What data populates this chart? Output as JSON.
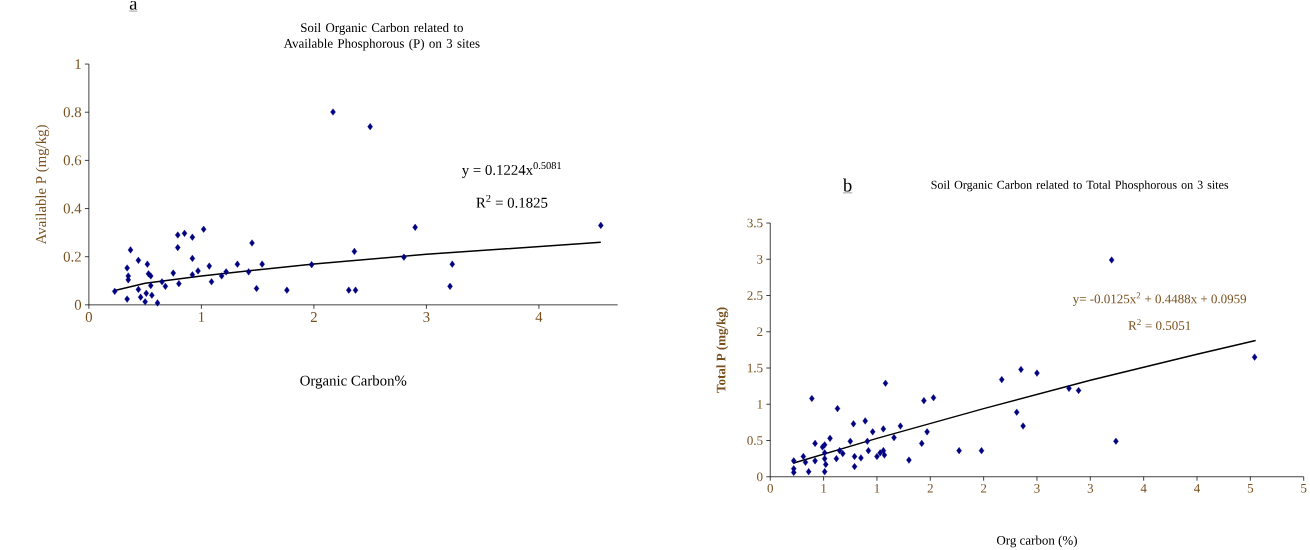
{
  "chart_data": [
    {
      "type": "scatter",
      "title": "Soil Organic Carbon related to Available Phosphorous (P) on 3 sites",
      "xlabel": "Organic Carbon%",
      "ylabel": "Available P (mg/kg)",
      "annotations": [
        "a",
        "y = 0.1224x$^{0.5081}$",
        "R$^{2}$ = 0.1825"
      ],
      "xlim": [
        0,
        4.7
      ],
      "ylim": [
        0,
        1
      ],
      "xticks": [
        0,
        1,
        2,
        3,
        4
      ],
      "yticks": [
        0,
        0.2,
        0.4,
        0.6,
        0.8,
        1
      ],
      "grid": false,
      "marker": "diamond",
      "series": [
        {
          "color": "#000080",
          "x": [
            0.23,
            0.34,
            0.34,
            0.35,
            0.35,
            0.37,
            0.44,
            0.44,
            0.46,
            0.5,
            0.51,
            0.52,
            0.53,
            0.55,
            0.55,
            0.56,
            0.61,
            0.65,
            0.68,
            0.75,
            0.79,
            0.79,
            0.8,
            0.85,
            0.92,
            0.92,
            0.92,
            0.97,
            1.02,
            1.07,
            1.09,
            1.18,
            1.22,
            1.32,
            1.42,
            1.45,
            1.49,
            1.54,
            1.76,
            1.98,
            2.17,
            2.31,
            2.36,
            2.37,
            2.5,
            2.8,
            2.9,
            3.21,
            3.23,
            4.55
          ],
          "values": [
            0.056,
            0.024,
            0.153,
            0.12,
            0.104,
            0.228,
            0.185,
            0.064,
            0.032,
            0.013,
            0.048,
            0.169,
            0.129,
            0.12,
            0.08,
            0.04,
            0.008,
            0.096,
            0.077,
            0.132,
            0.29,
            0.238,
            0.088,
            0.297,
            0.281,
            0.193,
            0.125,
            0.141,
            0.314,
            0.161,
            0.096,
            0.12,
            0.137,
            0.169,
            0.137,
            0.257,
            0.068,
            0.169,
            0.061,
            0.167,
            0.801,
            0.061,
            0.222,
            0.061,
            0.74,
            0.198,
            0.322,
            0.077,
            0.169,
            0.33
          ]
        },
        {
          "type": "line",
          "color": "#000000",
          "marker": "none",
          "x": [
            0.23,
            0.5,
            1,
            2,
            3,
            4.55
          ],
          "values": [
            0.06,
            0.09,
            0.12,
            0.17,
            0.21,
            0.26
          ]
        }
      ]
    },
    {
      "type": "scatter",
      "title": "Soil Organic Carbon related to Total Phosphorous on 3 sites",
      "xlabel": "Org carbon (%)",
      "ylabel": "Total P (mg/kg)",
      "annotations": [
        "b",
        "y= -0.0125x$^{2}$ + 0.4488x + 0.0959",
        "R$^{2}$ = 0.5051"
      ],
      "xlim": [
        0,
        5
      ],
      "ylim": [
        0,
        3.5
      ],
      "xticks": [
        0,
        {
          "value": 0.5,
          "label": "1"
        },
        1,
        {
          "value": 1.5,
          "label": "2"
        },
        2,
        {
          "value": 2.5,
          "label": "3"
        },
        3,
        {
          "value": 3.5,
          "label": "4"
        },
        4,
        {
          "value": 4.5,
          "label": "5"
        },
        5
      ],
      "yticks": [
        0,
        0.5,
        1,
        1.5,
        2,
        2.5,
        3,
        3.5
      ],
      "grid": false,
      "marker": "diamond",
      "series": [
        {
          "color": "#000080",
          "x": [
            0.22,
            0.22,
            0.22,
            0.31,
            0.33,
            0.36,
            0.39,
            0.42,
            0.42,
            0.49,
            0.51,
            0.51,
            0.51,
            0.51,
            0.52,
            0.56,
            0.62,
            0.63,
            0.65,
            0.68,
            0.75,
            0.78,
            0.79,
            0.79,
            0.85,
            0.89,
            0.91,
            0.92,
            0.96,
            1.0,
            1.03,
            1.06,
            1.06,
            1.07,
            1.08,
            1.16,
            1.22,
            1.3,
            1.42,
            1.44,
            1.47,
            1.53,
            1.77,
            1.98,
            2.17,
            2.31,
            2.35,
            2.37,
            2.5,
            2.8,
            2.89,
            3.2,
            3.24,
            4.54
          ],
          "values": [
            0.22,
            0.11,
            0.06,
            0.28,
            0.2,
            0.07,
            1.08,
            0.46,
            0.22,
            0.41,
            0.44,
            0.33,
            0.25,
            0.07,
            0.17,
            0.53,
            0.25,
            0.94,
            0.36,
            0.32,
            0.49,
            0.73,
            0.28,
            0.14,
            0.26,
            0.77,
            0.49,
            0.36,
            0.62,
            0.28,
            0.33,
            0.36,
            0.66,
            0.3,
            1.29,
            0.54,
            0.7,
            0.23,
            0.46,
            1.05,
            0.62,
            1.09,
            0.36,
            0.36,
            1.34,
            0.89,
            1.48,
            0.7,
            1.43,
            1.22,
            1.19,
            2.99,
            0.49,
            1.65
          ]
        },
        {
          "type": "line",
          "color": "#000000",
          "marker": "none",
          "x": [
            0.22,
            1,
            2,
            3,
            4,
            4.55
          ],
          "values": [
            0.19,
            0.53,
            0.94,
            1.33,
            1.69,
            1.88
          ]
        }
      ]
    }
  ]
}
